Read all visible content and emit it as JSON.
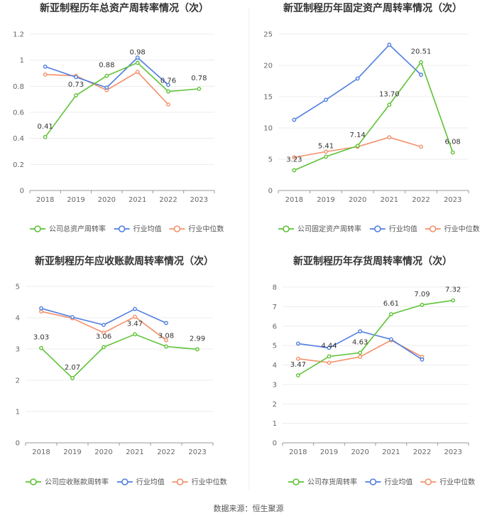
{
  "colors": {
    "company": "#5ec236",
    "average": "#4f7ee0",
    "median": "#f3906a"
  },
  "source": "数据来源：恒生聚源",
  "chart_data": [
    {
      "type": "line",
      "title": "新亚制程历年总资产周转率情况（次）",
      "x": [
        "2018",
        "2019",
        "2020",
        "2021",
        "2022",
        "2023"
      ],
      "ylim": [
        0,
        1.2
      ],
      "yticks": [
        0,
        0.2,
        0.4,
        0.6,
        0.8,
        1,
        1.2
      ],
      "ytick_labels": [
        "0",
        "0.2",
        "0.4",
        "0.6",
        "0.8",
        "1",
        "1.2"
      ],
      "series": [
        {
          "name": "公司总资产周转率",
          "values": [
            0.41,
            0.73,
            0.88,
            0.98,
            0.76,
            0.78
          ],
          "labels": [
            "0.41",
            "0.73",
            "0.88",
            "0.98",
            "0.76",
            "0.78"
          ]
        },
        {
          "name": "行业均值",
          "values": [
            0.95,
            0.87,
            0.79,
            1.02,
            0.81,
            null
          ]
        },
        {
          "name": "行业中位数",
          "values": [
            0.89,
            0.88,
            0.77,
            0.91,
            0.66,
            null
          ]
        }
      ]
    },
    {
      "type": "line",
      "title": "新亚制程历年固定资产周转率情况（次）",
      "x": [
        "2018",
        "2019",
        "2020",
        "2021",
        "2022",
        "2023"
      ],
      "ylim": [
        0,
        25
      ],
      "yticks": [
        0,
        5,
        10,
        15,
        20,
        25
      ],
      "ytick_labels": [
        "0",
        "5",
        "10",
        "15",
        "20",
        "25"
      ],
      "series": [
        {
          "name": "公司固定资产周转率",
          "values": [
            3.23,
            5.41,
            7.14,
            13.7,
            20.51,
            6.08
          ],
          "labels": [
            "3.23",
            "5.41",
            "7.14",
            "13.70",
            "20.51",
            "6.08"
          ]
        },
        {
          "name": "行业均值",
          "values": [
            11.3,
            14.5,
            17.9,
            23.3,
            18.5,
            null
          ]
        },
        {
          "name": "行业中位数",
          "values": [
            5.3,
            6.2,
            7.0,
            8.5,
            7.0,
            null
          ]
        }
      ]
    },
    {
      "type": "line",
      "title": "新亚制程历年应收账款周转率情况（次）",
      "x": [
        "2018",
        "2019",
        "2020",
        "2021",
        "2022",
        "2023"
      ],
      "ylim": [
        0,
        5
      ],
      "yticks": [
        0,
        1,
        2,
        3,
        4,
        5
      ],
      "ytick_labels": [
        "0",
        "1",
        "2",
        "3",
        "4",
        "5"
      ],
      "series": [
        {
          "name": "公司应收账款周转率",
          "values": [
            3.03,
            2.07,
            3.06,
            3.47,
            3.08,
            2.99
          ],
          "labels": [
            "3.03",
            "2.07",
            "3.06",
            "3.47",
            "3.08",
            "2.99"
          ]
        },
        {
          "name": "行业均值",
          "values": [
            4.3,
            4.02,
            3.77,
            4.28,
            3.83,
            null
          ]
        },
        {
          "name": "行业中位数",
          "values": [
            4.2,
            3.98,
            3.52,
            4.03,
            3.28,
            null
          ]
        }
      ]
    },
    {
      "type": "line",
      "title": "新亚制程历年存货周转率情况（次）",
      "x": [
        "2018",
        "2019",
        "2020",
        "2021",
        "2022",
        "2023"
      ],
      "ylim": [
        0,
        8
      ],
      "yticks": [
        0,
        1,
        2,
        3,
        4,
        5,
        6,
        7,
        8
      ],
      "ytick_labels": [
        "0",
        "1",
        "2",
        "3",
        "4",
        "5",
        "6",
        "7",
        "8"
      ],
      "series": [
        {
          "name": "公司存货周转率",
          "values": [
            3.47,
            4.44,
            4.63,
            6.61,
            7.09,
            7.32
          ],
          "labels": [
            "3.47",
            "4.44",
            "4.63",
            "6.61",
            "7.09",
            "7.32"
          ]
        },
        {
          "name": "行业均值",
          "values": [
            5.1,
            4.88,
            5.73,
            5.32,
            4.28,
            null
          ]
        },
        {
          "name": "行业中位数",
          "values": [
            4.32,
            4.12,
            4.42,
            5.27,
            4.42,
            null
          ]
        }
      ]
    }
  ]
}
